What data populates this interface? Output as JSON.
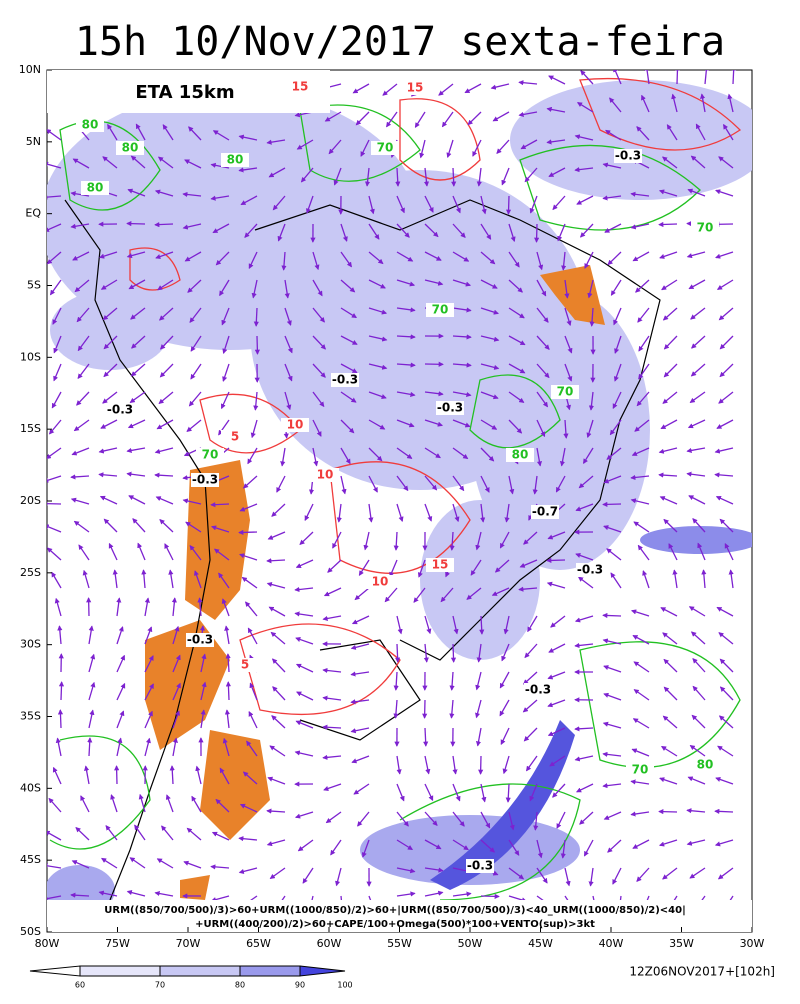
{
  "title": "15h 10/Nov/2017 sexta-feira",
  "model_label": "ETA 15km",
  "lat_labels": [
    "10N",
    "5N",
    "EQ",
    "5S",
    "10S",
    "15S",
    "20S",
    "25S",
    "30S",
    "35S",
    "40S",
    "45S",
    "50S"
  ],
  "lon_labels": [
    "80W",
    "75W",
    "70W",
    "65W",
    "60W",
    "55W",
    "50W",
    "45W",
    "40W",
    "35W",
    "30W"
  ],
  "contour_labels": [
    "80",
    "80",
    "80",
    "80",
    "70",
    "70",
    "80",
    "-0.3",
    "-0.3",
    "-0.3",
    "-0.3",
    "-0.3",
    "15",
    "10",
    "5",
    "10",
    "15",
    "-0.7",
    "-0.3",
    "70",
    "70",
    "80",
    "70",
    "-0.3",
    "-0.3",
    "-0.3",
    "5",
    "10",
    "15",
    "70"
  ],
  "formula_lines": [
    "URM((850/700/500)/3)>60+URM((1000/850)/2)>60+|URM((850/700/500)/3)<40_URM((1000/850)/2)<40|",
    "+URM((400/200)/2)>60+CAPE/100+Omega(500)*100+VENTO(sup)>3kt"
  ],
  "colorbar_labels": [
    "60",
    "70",
    "80",
    "90",
    "100"
  ],
  "run_label": "12Z06NOV2017+[102h]"
}
